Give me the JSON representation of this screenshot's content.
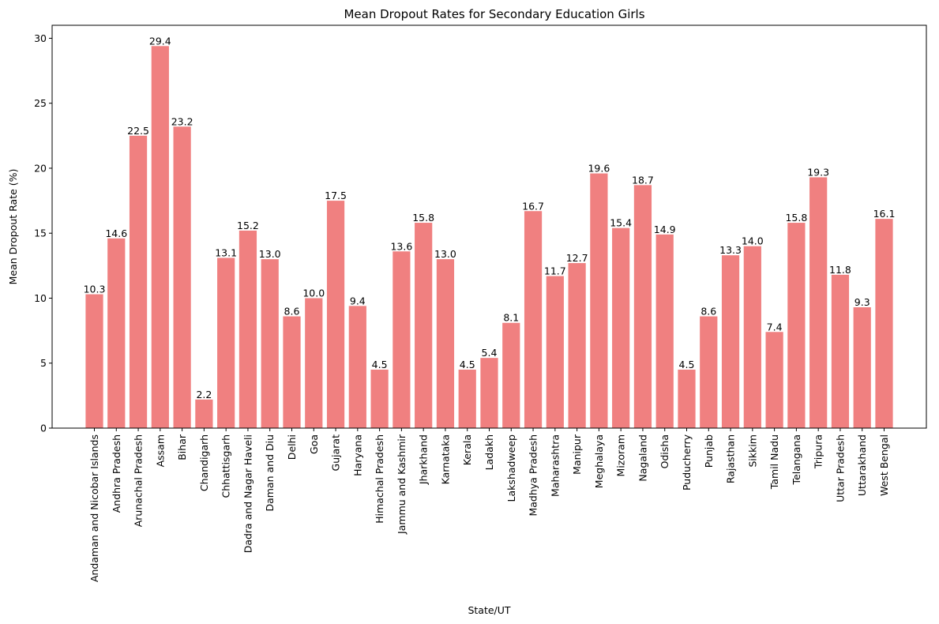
{
  "chart_data": {
    "type": "bar",
    "title": "Mean Dropout Rates for Secondary Education Girls",
    "xlabel": "State/UT",
    "ylabel": "Mean Dropout Rate (%)",
    "ylim": [
      0,
      31
    ],
    "yticks": [
      0,
      5,
      10,
      15,
      20,
      25,
      30
    ],
    "grid": false,
    "bar_color": "#f08080",
    "categories": [
      "Andaman and Nicobar Islands",
      "Andhra Pradesh",
      "Arunachal Pradesh",
      "Assam",
      "Bihar",
      "Chandigarh",
      "Chhattisgarh",
      "Dadra and Nagar Haveli",
      "Daman and Diu",
      "Delhi",
      "Goa",
      "Gujarat",
      "Haryana",
      "Himachal Pradesh",
      "Jammu and Kashmir",
      "Jharkhand",
      "Karnataka",
      "Kerala",
      "Ladakh",
      "Lakshadweep",
      "Madhya Pradesh",
      "Maharashtra",
      "Manipur",
      "Meghalaya",
      "Mizoram",
      "Nagaland",
      "Odisha",
      "Puducherry",
      "Punjab",
      "Rajasthan",
      "Sikkim",
      "Tamil Nadu",
      "Telangana",
      "Tripura",
      "Uttar Pradesh",
      "Uttarakhand",
      "West Bengal"
    ],
    "values": [
      10.3,
      14.6,
      22.5,
      29.4,
      23.2,
      2.2,
      13.1,
      15.2,
      13.0,
      8.6,
      10.0,
      17.5,
      9.4,
      4.5,
      13.6,
      15.8,
      13.0,
      4.5,
      5.4,
      8.1,
      16.7,
      11.7,
      12.7,
      19.6,
      15.4,
      18.7,
      14.9,
      4.5,
      8.6,
      13.3,
      14.0,
      7.4,
      15.8,
      19.3,
      11.8,
      9.3,
      16.1
    ],
    "data_labels": [
      "10.3",
      "14.6",
      "22.5",
      "29.4",
      "23.2",
      "2.2",
      "13.1",
      "15.2",
      "13.0",
      "8.6",
      "10.0",
      "17.5",
      "9.4",
      "4.5",
      "13.6",
      "15.8",
      "13.0",
      "4.5",
      "5.4",
      "8.1",
      "16.7",
      "11.7",
      "12.7",
      "19.6",
      "15.4",
      "18.7",
      "14.9",
      "4.5",
      "8.6",
      "13.3",
      "14.0",
      "7.4",
      "15.8",
      "19.3",
      "11.8",
      "9.3",
      "16.1"
    ]
  }
}
